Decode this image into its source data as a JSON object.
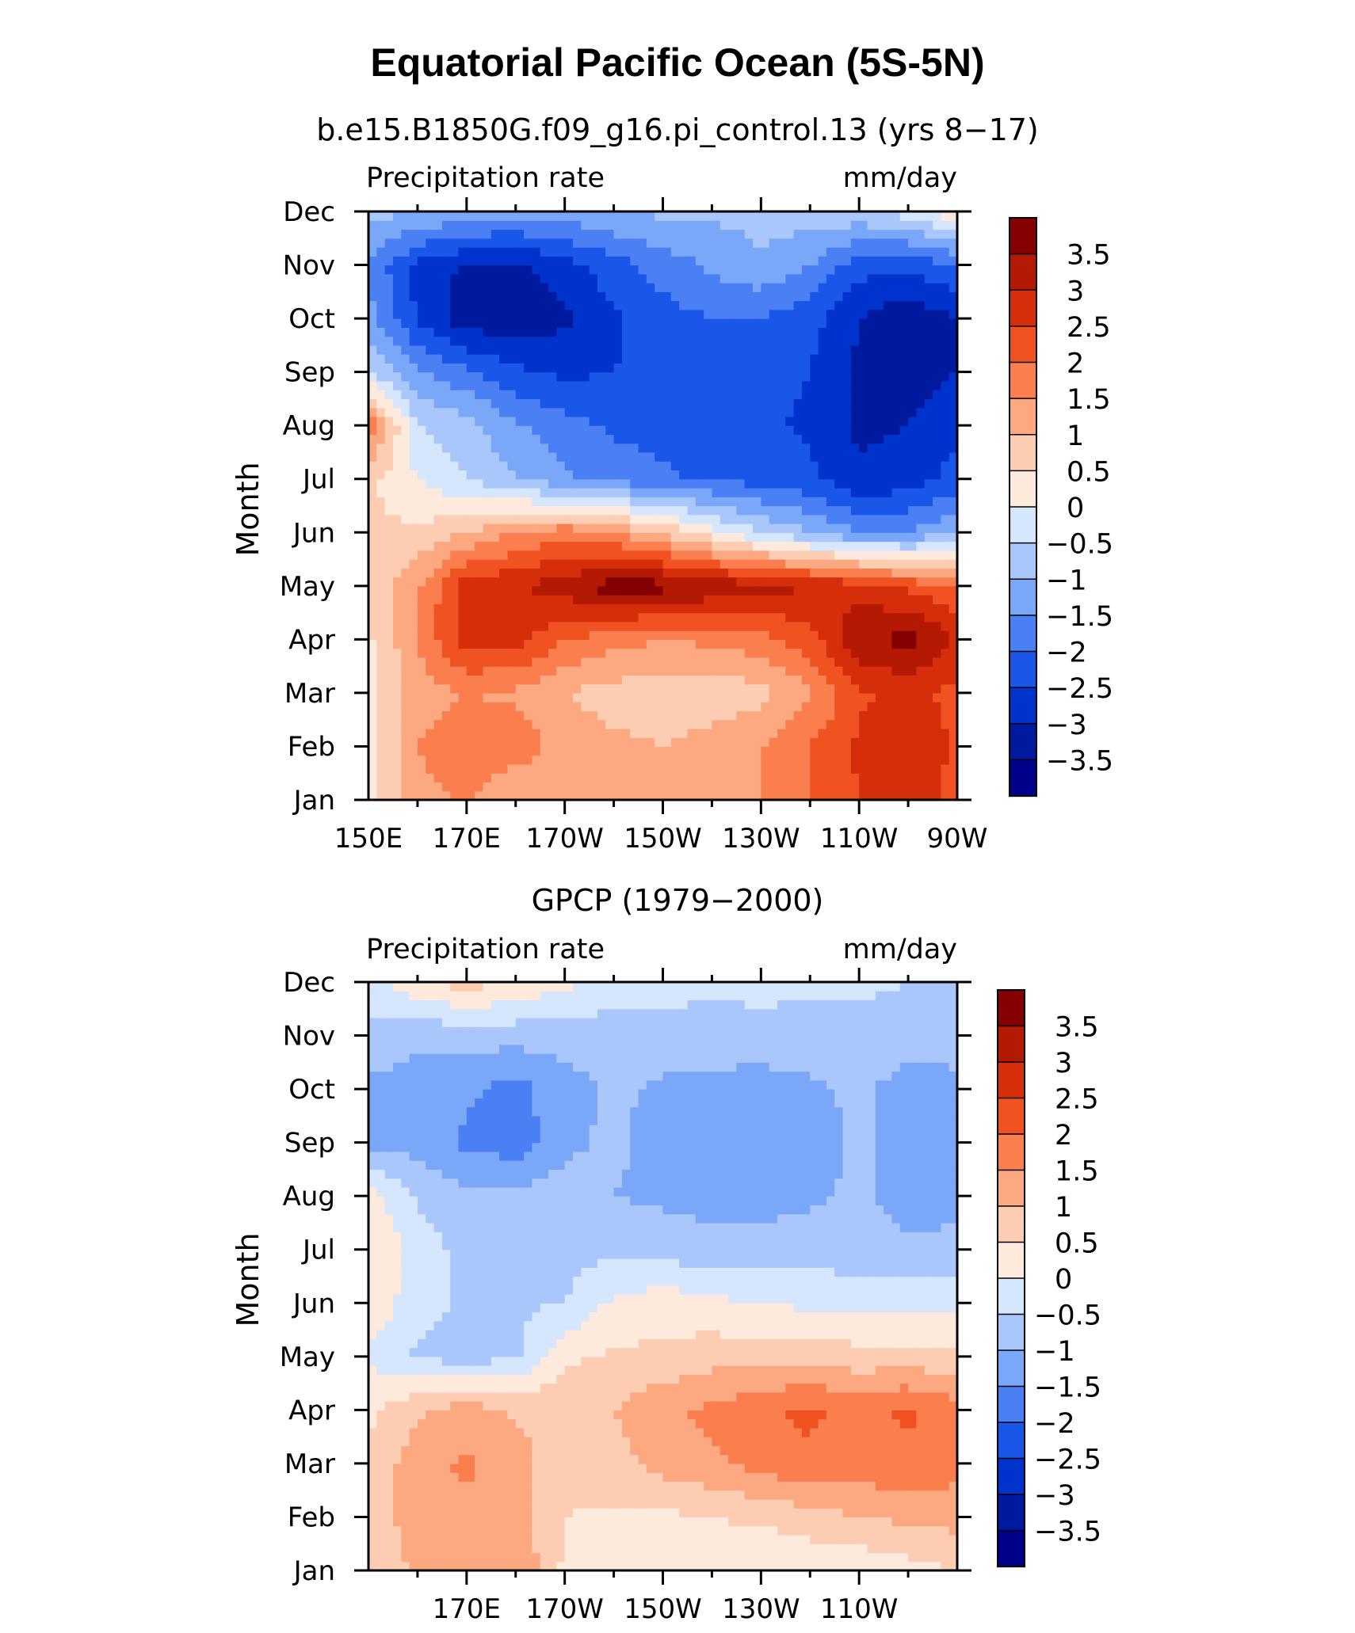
{
  "title": "Equatorial Pacific Ocean (5S-5N)",
  "colors": {
    "levels": [
      -3.5,
      -3,
      -2.5,
      -2,
      -1.5,
      -1,
      -0.5,
      0,
      0.5,
      1,
      1.5,
      2,
      2.5,
      3,
      3.5
    ],
    "palette": [
      "#00008a",
      "#001a9f",
      "#0033cc",
      "#1a57e8",
      "#4a80f4",
      "#7ba7f8",
      "#a9c7fb",
      "#d5e6fd",
      "#feeadc",
      "#fccdb3",
      "#fca982",
      "#fa7e4e",
      "#f05222",
      "#d62e0a",
      "#b31903",
      "#850000"
    ]
  },
  "chart_data": [
    {
      "type": "heatmap",
      "subtitle": "b.e15.B1850G.f09_g16.pi_control.13 (yrs 8−17)",
      "left_label": "Precipitation rate",
      "right_label": "mm/day",
      "ylabel": "Month",
      "xlabel": "",
      "x_tick_labels": [
        "150E",
        "170E",
        "170W",
        "150W",
        "130W",
        "110W",
        "90W"
      ],
      "y_tick_labels": [
        "Jan",
        "Feb",
        "Mar",
        "Apr",
        "May",
        "Jun",
        "Jul",
        "Aug",
        "Sep",
        "Oct",
        "Nov",
        "Dec"
      ],
      "xlim": [
        150,
        270
      ],
      "ylim": [
        "Jan",
        "Dec"
      ],
      "colorbar_labels": [
        "3.5",
        "3",
        "2.5",
        "2",
        "1.5",
        "1",
        "0.5",
        "0",
        "−0.5",
        "−1",
        "−1.5",
        "−2",
        "−2.5",
        "−3",
        "−3.5"
      ],
      "x": [
        150,
        160,
        170,
        180,
        190,
        200,
        210,
        220,
        230,
        240,
        250,
        260,
        270
      ],
      "y": [
        "Jan",
        "Feb",
        "Mar",
        "Apr",
        "May",
        "Jun",
        "Jul",
        "Aug",
        "Sep",
        "Oct",
        "Nov",
        "Dec"
      ],
      "z": [
        [
          0.4,
          1.3,
          1.6,
          1.0,
          1.0,
          1.0,
          1.1,
          1.3,
          1.5,
          2.0,
          2.5,
          2.8,
          2.3
        ],
        [
          0.3,
          1.5,
          1.9,
          1.8,
          1.3,
          1.1,
          1.0,
          1.2,
          1.5,
          2.0,
          2.6,
          3.0,
          2.4
        ],
        [
          0.4,
          1.2,
          1.5,
          1.4,
          1.0,
          0.8,
          0.7,
          0.7,
          0.8,
          1.4,
          2.4,
          2.7,
          2.3
        ],
        [
          0.4,
          1.5,
          2.8,
          2.7,
          2.0,
          1.7,
          1.5,
          1.6,
          1.8,
          2.3,
          3.4,
          3.7,
          3.0
        ],
        [
          0.7,
          1.4,
          2.8,
          2.9,
          3.3,
          3.8,
          3.7,
          3.4,
          3.2,
          3.0,
          2.8,
          2.4,
          2.0
        ],
        [
          0.6,
          0.6,
          1.0,
          1.5,
          1.8,
          1.5,
          0.9,
          0.2,
          -0.5,
          -1.0,
          -1.5,
          -1.5,
          -1.0
        ],
        [
          0.6,
          0.0,
          -0.5,
          -1.0,
          -1.4,
          -1.7,
          -1.9,
          -2.1,
          -2.2,
          -2.4,
          -2.9,
          -2.8,
          -2.3
        ],
        [
          2.0,
          -0.5,
          -0.8,
          -1.4,
          -1.8,
          -2.1,
          -2.2,
          -2.3,
          -2.4,
          -2.6,
          -3.1,
          -3.0,
          -2.6
        ],
        [
          -0.5,
          -1.4,
          -1.9,
          -2.4,
          -2.6,
          -2.5,
          -2.3,
          -2.2,
          -2.3,
          -2.5,
          -3.1,
          -3.3,
          -3.0
        ],
        [
          -1.3,
          -2.6,
          -3.3,
          -3.4,
          -3.1,
          -2.6,
          -2.2,
          -2.0,
          -2.0,
          -2.3,
          -3.0,
          -3.4,
          -3.0
        ],
        [
          -1.6,
          -2.6,
          -3.1,
          -3.1,
          -2.7,
          -2.2,
          -1.8,
          -1.4,
          -1.1,
          -1.5,
          -2.3,
          -2.4,
          -2.0
        ],
        [
          -0.8,
          -1.0,
          -1.1,
          -1.3,
          -1.2,
          -1.0,
          -0.9,
          -0.9,
          -0.8,
          -0.7,
          -0.6,
          -0.3,
          0.4
        ]
      ]
    },
    {
      "type": "heatmap",
      "subtitle": "GPCP (1979−2000)",
      "left_label": "Precipitation rate",
      "right_label": "mm/day",
      "ylabel": "Month",
      "xlabel": "",
      "x_tick_labels": [
        "170E",
        "170W",
        "150W",
        "130W",
        "110W"
      ],
      "y_tick_labels": [
        "Jan",
        "Feb",
        "Mar",
        "Apr",
        "May",
        "Jun",
        "Jul",
        "Aug",
        "Sep",
        "Oct",
        "Nov",
        "Dec"
      ],
      "xlim": [
        150,
        270
      ],
      "ylim": [
        "Jan",
        "Dec"
      ],
      "colorbar_labels": [
        "3.5",
        "3",
        "2.5",
        "2",
        "1.5",
        "1",
        "0.5",
        "0",
        "−0.5",
        "−1",
        "−1.5",
        "−2",
        "−2.5",
        "−3",
        "−3.5"
      ],
      "x": [
        150,
        160,
        170,
        180,
        190,
        200,
        210,
        220,
        230,
        240,
        250,
        260,
        270
      ],
      "y": [
        "Jan",
        "Feb",
        "Mar",
        "Apr",
        "May",
        "Jun",
        "Jul",
        "Aug",
        "Sep",
        "Oct",
        "Nov",
        "Dec"
      ],
      "z": [
        [
          0.6,
          1.1,
          1.3,
          1.5,
          0.4,
          0.2,
          0.1,
          0.1,
          0.0,
          0.1,
          0.1,
          0.3,
          0.5
        ],
        [
          0.8,
          1.2,
          1.4,
          1.2,
          0.5,
          0.4,
          0.4,
          0.5,
          0.6,
          0.8,
          1.0,
          1.1,
          1.2
        ],
        [
          0.6,
          1.3,
          1.6,
          1.2,
          0.7,
          0.8,
          1.2,
          1.4,
          1.7,
          1.9,
          1.8,
          1.9,
          1.7
        ],
        [
          0.4,
          0.9,
          1.3,
          0.9,
          0.9,
          1.0,
          1.4,
          1.6,
          1.9,
          2.1,
          1.8,
          2.1,
          1.7
        ],
        [
          -0.1,
          -0.6,
          -0.7,
          -0.6,
          0.4,
          0.6,
          0.6,
          0.8,
          0.8,
          0.8,
          0.7,
          0.7,
          0.6
        ],
        [
          0.4,
          -0.3,
          -0.6,
          -0.6,
          -0.5,
          0.1,
          0.3,
          0.1,
          0.0,
          -0.1,
          -0.2,
          -0.2,
          -0.2
        ],
        [
          0.5,
          -0.2,
          -0.7,
          -0.7,
          -0.7,
          -0.6,
          -0.7,
          -0.8,
          -0.8,
          -0.7,
          -0.8,
          -0.9,
          -0.9
        ],
        [
          0.3,
          -0.6,
          -0.9,
          -0.8,
          -0.8,
          -1.0,
          -1.1,
          -1.2,
          -1.2,
          -1.1,
          -0.9,
          -1.2,
          -1.1
        ],
        [
          -1.2,
          -1.2,
          -1.6,
          -1.8,
          -1.1,
          -0.9,
          -1.2,
          -1.3,
          -1.3,
          -1.2,
          -0.9,
          -1.3,
          -1.2
        ],
        [
          -1.1,
          -1.2,
          -1.4,
          -1.7,
          -1.2,
          -0.9,
          -1.1,
          -1.2,
          -1.3,
          -1.1,
          -0.9,
          -1.2,
          -1.2
        ],
        [
          -0.7,
          -0.9,
          -0.8,
          -0.8,
          -0.8,
          -0.8,
          -0.7,
          -0.7,
          -0.6,
          -0.7,
          -0.7,
          -0.8,
          -0.7
        ],
        [
          -0.2,
          0.4,
          0.7,
          0.4,
          0.1,
          -0.2,
          -0.3,
          -0.4,
          -0.4,
          -0.4,
          -0.4,
          -0.5,
          -0.5
        ]
      ]
    }
  ]
}
